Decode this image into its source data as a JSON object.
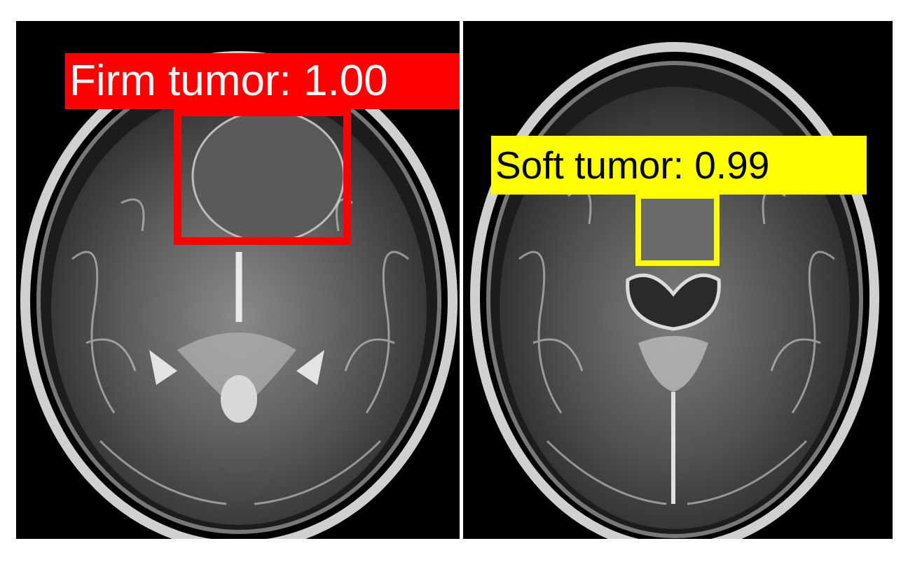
{
  "panels": [
    {
      "id": "left",
      "detection": {
        "label": "Firm tumor: 1.00",
        "color": "#ff0000",
        "text_color": "#ffffff"
      }
    },
    {
      "id": "right",
      "detection": {
        "label": "Soft tumor: 0.99",
        "color": "#ffff00",
        "text_color": "#000000"
      }
    }
  ]
}
